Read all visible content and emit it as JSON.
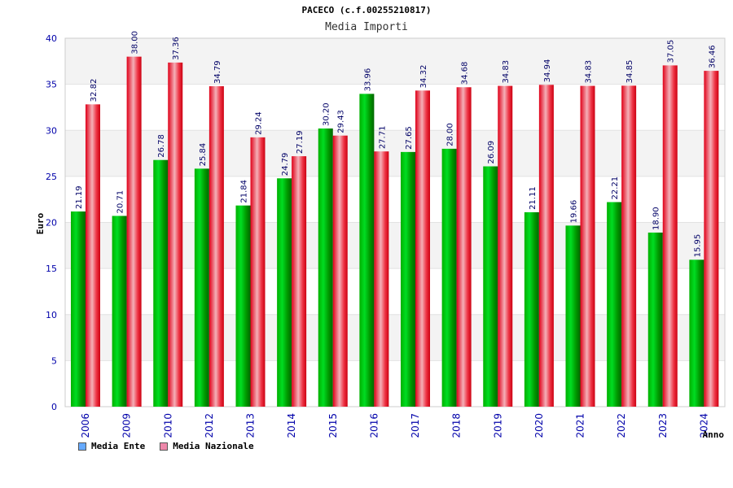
{
  "chart_data": {
    "type": "bar",
    "title": "PACECO (c.f.00255210817)",
    "subtitle": "Media Importi",
    "ylabel": "Euro",
    "xlabel": "Anno",
    "ylim": [
      0,
      40
    ],
    "yticks": [
      0,
      5,
      10,
      15,
      20,
      25,
      30,
      35,
      40
    ],
    "categories": [
      "2006",
      "2009",
      "2010",
      "2012",
      "2013",
      "2014",
      "2015",
      "2016",
      "2017",
      "2018",
      "2019",
      "2020",
      "2021",
      "2022",
      "2023",
      "2024"
    ],
    "series": [
      {
        "name": "Media Ente",
        "color": "#00aa00",
        "values": [
          21.19,
          20.71,
          26.78,
          25.84,
          21.84,
          24.79,
          30.2,
          33.96,
          27.65,
          28.0,
          26.09,
          21.11,
          19.66,
          22.21,
          18.9,
          15.95
        ]
      },
      {
        "name": "Media Nazionale",
        "color": "#ee1122",
        "values": [
          32.82,
          38.0,
          37.36,
          34.79,
          29.24,
          27.19,
          29.43,
          27.71,
          34.32,
          34.68,
          34.83,
          34.94,
          34.83,
          34.85,
          37.05,
          36.46
        ]
      }
    ],
    "data_labels": [
      [
        "21.19",
        "20.71",
        "26.78",
        "25.84",
        "21.84",
        "24.79",
        "30.20",
        "33.96",
        "27.65",
        "28.00",
        "26.09",
        "21.11",
        "19.66",
        "22.21",
        "18.90",
        "15.95"
      ],
      [
        "32.82",
        "38.00",
        "37.36",
        "34.79",
        "29.24",
        "27.19",
        "29.43",
        "27.71",
        "34.32",
        "34.68",
        "34.83",
        "34.94",
        "34.83",
        "34.85",
        "37.05",
        "36.46"
      ]
    ],
    "legend": {
      "placement": "bottom-left",
      "items": [
        {
          "label": "Media Ente",
          "color": "#66aaff"
        },
        {
          "label": "Media Nazionale",
          "color": "#ee88aa"
        }
      ]
    },
    "grid": true
  }
}
